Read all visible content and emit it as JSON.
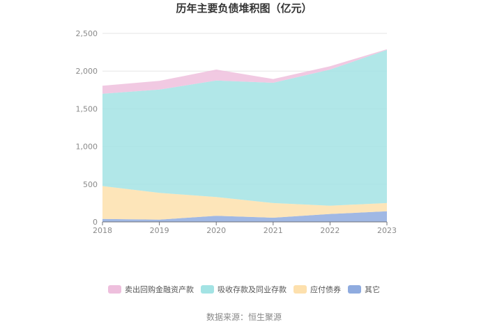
{
  "chart_data": {
    "type": "area",
    "stacked": true,
    "title": "历年主要负债堆积图（亿元）",
    "x": [
      "2018",
      "2019",
      "2020",
      "2021",
      "2022",
      "2023"
    ],
    "ylim": [
      0,
      2500
    ],
    "yticks": [
      "0",
      "500",
      "1,000",
      "1,500",
      "2,000",
      "2,500"
    ],
    "ytick_values": [
      0,
      500,
      1000,
      1500,
      2000,
      2500
    ],
    "grid": true,
    "legend_position": "bottom",
    "series": [
      {
        "name": "其它",
        "color": "#8fabdf",
        "values": [
          40,
          30,
          80,
          55,
          105,
          140
        ]
      },
      {
        "name": "应付债券",
        "color": "#fde0ad",
        "values": [
          435,
          355,
          250,
          195,
          110,
          110
        ]
      },
      {
        "name": "吸收存款及同业存款",
        "color": "#a3e3e4",
        "values": [
          1225,
          1370,
          1545,
          1595,
          1805,
          2030
        ]
      },
      {
        "name": "卖出回购金融资产款",
        "color": "#eebfdd",
        "values": [
          105,
          115,
          145,
          50,
          45,
          10
        ]
      }
    ],
    "legend_order": [
      "卖出回购金融资产款",
      "吸收存款及同业存款",
      "应付债券",
      "其它"
    ]
  },
  "source": "数据来源：恒生聚源"
}
